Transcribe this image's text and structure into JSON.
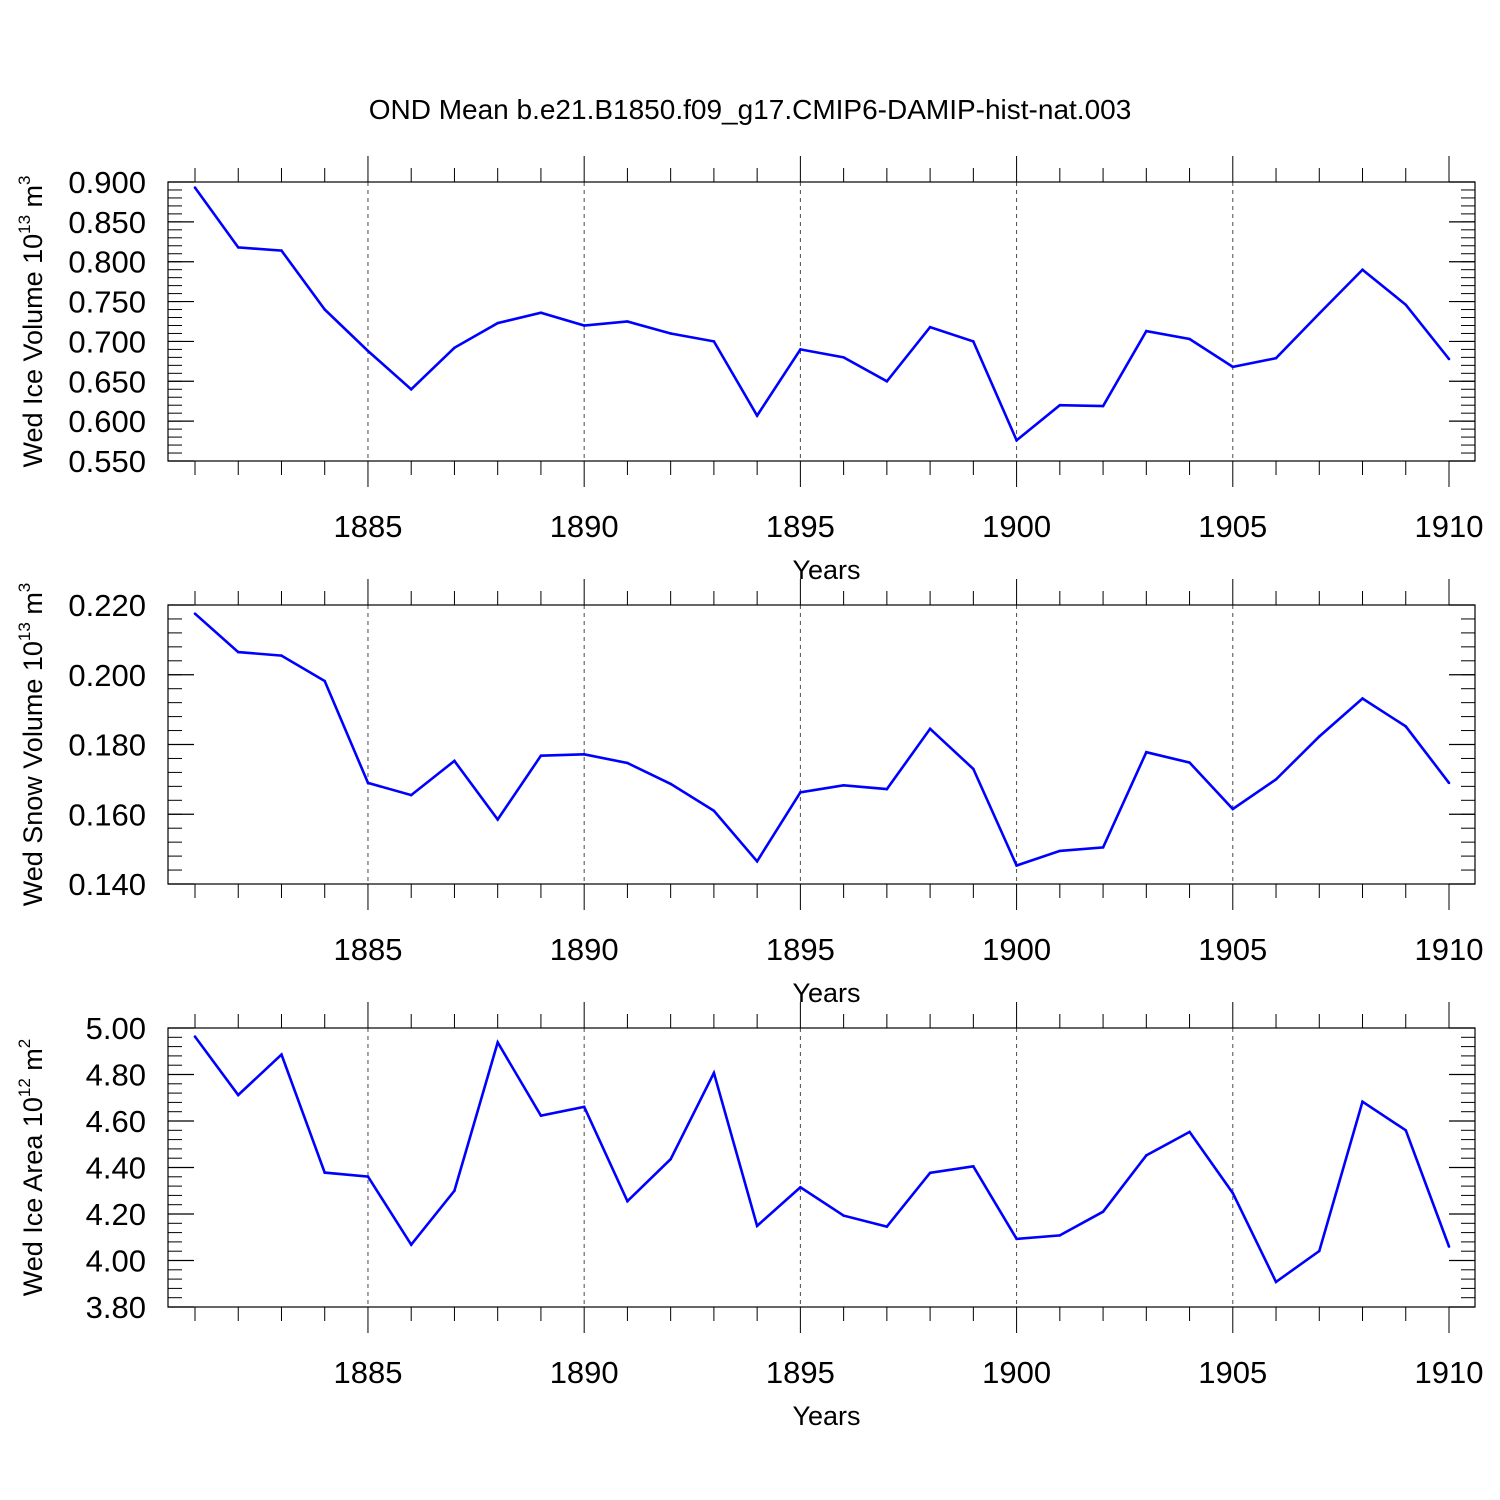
{
  "title": "OND Mean b.e21.B1850.f09_g17.CMIP6-DAMIP-hist-nat.003",
  "colors": {
    "series": "#0000ff",
    "axis": "#000000",
    "gridline": "#000000"
  },
  "chart_data": [
    {
      "type": "line",
      "ylabel": "Wed Ice Volume 10",
      "ylabel_exp": "13",
      "ylabel_unit": " m",
      "ylabel_unit_exp": "3",
      "xlabel": "Years",
      "xlim": [
        1881,
        1910
      ],
      "ylim": [
        0.55,
        0.9
      ],
      "xticks": [
        "1885",
        "1890",
        "1895",
        "1900",
        "1905",
        "1910"
      ],
      "yticks": [
        "0.550",
        "0.600",
        "0.650",
        "0.700",
        "0.750",
        "0.800",
        "0.850",
        "0.900"
      ],
      "grid": "vertical dashed at major x ticks",
      "x": [
        1881,
        1882,
        1883,
        1884,
        1885,
        1886,
        1887,
        1888,
        1889,
        1890,
        1891,
        1892,
        1893,
        1894,
        1895,
        1896,
        1897,
        1898,
        1899,
        1900,
        1901,
        1902,
        1903,
        1904,
        1905,
        1906,
        1907,
        1908,
        1909,
        1910
      ],
      "values": [
        0.893,
        0.818,
        0.814,
        0.74,
        0.688,
        0.64,
        0.692,
        0.723,
        0.736,
        0.72,
        0.725,
        0.71,
        0.7,
        0.607,
        0.69,
        0.68,
        0.65,
        0.718,
        0.7,
        0.576,
        0.62,
        0.619,
        0.713,
        0.703,
        0.668,
        0.679,
        0.735,
        0.79,
        0.746,
        0.678
      ]
    },
    {
      "type": "line",
      "ylabel": "Wed Snow Volume 10",
      "ylabel_exp": "13",
      "ylabel_unit": " m",
      "ylabel_unit_exp": "3",
      "xlabel": "Years",
      "xlim": [
        1881,
        1910
      ],
      "ylim": [
        0.14,
        0.22
      ],
      "xticks": [
        "1885",
        "1890",
        "1895",
        "1900",
        "1905",
        "1910"
      ],
      "yticks": [
        "0.140",
        "0.160",
        "0.180",
        "0.200",
        "0.220"
      ],
      "grid": "vertical dashed at major x ticks",
      "x": [
        1881,
        1882,
        1883,
        1884,
        1885,
        1886,
        1887,
        1888,
        1889,
        1890,
        1891,
        1892,
        1893,
        1894,
        1895,
        1896,
        1897,
        1898,
        1899,
        1900,
        1901,
        1902,
        1903,
        1904,
        1905,
        1906,
        1907,
        1908,
        1909,
        1910
      ],
      "values": [
        0.2175,
        0.2065,
        0.2055,
        0.1982,
        0.169,
        0.1655,
        0.1753,
        0.1585,
        0.1768,
        0.1772,
        0.1747,
        0.1687,
        0.161,
        0.1465,
        0.1663,
        0.1683,
        0.1672,
        0.1845,
        0.173,
        0.1453,
        0.1495,
        0.1505,
        0.1778,
        0.1748,
        0.1615,
        0.17,
        0.1823,
        0.1932,
        0.1852,
        0.169
      ]
    },
    {
      "type": "line",
      "ylabel": "Wed Ice Area 10",
      "ylabel_exp": "12",
      "ylabel_unit": " m",
      "ylabel_unit_exp": "2",
      "xlabel": "Years",
      "xlim": [
        1881,
        1910
      ],
      "ylim": [
        3.8,
        5.0
      ],
      "xticks": [
        "1885",
        "1890",
        "1895",
        "1900",
        "1905",
        "1910"
      ],
      "yticks": [
        "3.80",
        "4.00",
        "4.20",
        "4.40",
        "4.60",
        "4.80",
        "5.00"
      ],
      "grid": "vertical dashed at major x ticks",
      "x": [
        1881,
        1882,
        1883,
        1884,
        1885,
        1886,
        1887,
        1888,
        1889,
        1890,
        1891,
        1892,
        1893,
        1894,
        1895,
        1896,
        1897,
        1898,
        1899,
        1900,
        1901,
        1902,
        1903,
        1904,
        1905,
        1906,
        1907,
        1908,
        1909,
        1910
      ],
      "values": [
        4.963,
        4.712,
        4.886,
        4.378,
        4.361,
        4.068,
        4.3,
        4.938,
        4.623,
        4.661,
        4.255,
        4.436,
        4.807,
        4.149,
        4.315,
        4.193,
        4.146,
        4.377,
        4.405,
        4.093,
        4.108,
        4.21,
        4.452,
        4.553,
        4.29,
        3.908,
        4.041,
        4.683,
        4.56,
        4.06
      ]
    }
  ]
}
